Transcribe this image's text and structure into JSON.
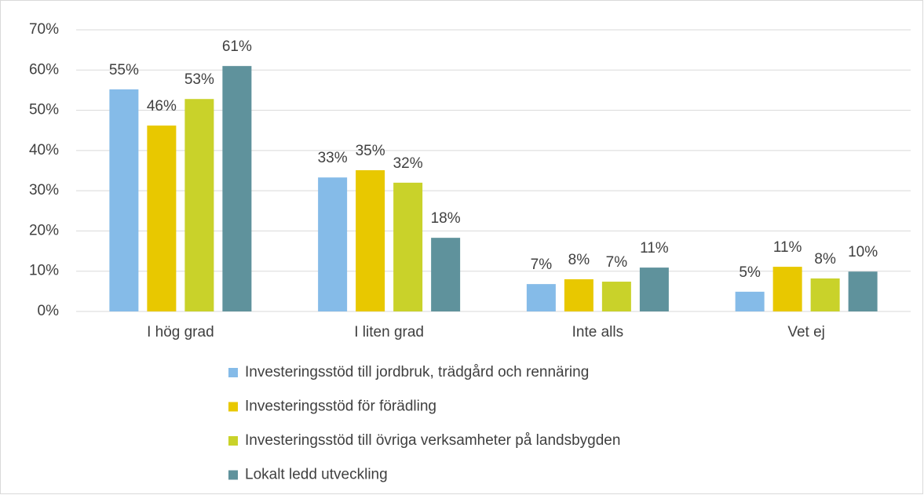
{
  "chart_data": {
    "type": "bar",
    "categories": [
      "I hög grad",
      "I liten grad",
      "Inte alls",
      "Vet ej"
    ],
    "series": [
      {
        "name": "Investeringsstöd till jordbruk, trädgård och rennäring",
        "color": "#85bbe8",
        "values": [
          55.2,
          33.3,
          6.8,
          4.9
        ],
        "value_labels": [
          "55%",
          "33%",
          "7%",
          "5%"
        ]
      },
      {
        "name": "Investeringsstöd för förädling",
        "color": "#e8c800",
        "values": [
          46.2,
          35.1,
          8.0,
          11.1
        ],
        "value_labels": [
          "46%",
          "35%",
          "8%",
          "11%"
        ]
      },
      {
        "name": "Investeringsstöd till övriga verksamheter på landsbygden",
        "color": "#c9d22a",
        "values": [
          52.8,
          32.0,
          7.4,
          8.2
        ],
        "value_labels": [
          "53%",
          "32%",
          "7%",
          "8%"
        ]
      },
      {
        "name": "Lokalt ledd utveckling",
        "color": "#5f929c",
        "values": [
          61.0,
          18.3,
          10.9,
          9.9
        ],
        "value_labels": [
          "61%",
          "18%",
          "11%",
          "10%"
        ]
      }
    ],
    "ylim": [
      0,
      70
    ],
    "yticks": [
      {
        "value": 0,
        "label": "0%"
      },
      {
        "value": 10,
        "label": "10%"
      },
      {
        "value": 20,
        "label": "20%"
      },
      {
        "value": 30,
        "label": "30%"
      },
      {
        "value": 40,
        "label": "40%"
      },
      {
        "value": 50,
        "label": "50%"
      },
      {
        "value": 60,
        "label": "60%"
      },
      {
        "value": 70,
        "label": "70%"
      }
    ],
    "grid": true,
    "legend": "bottom"
  }
}
